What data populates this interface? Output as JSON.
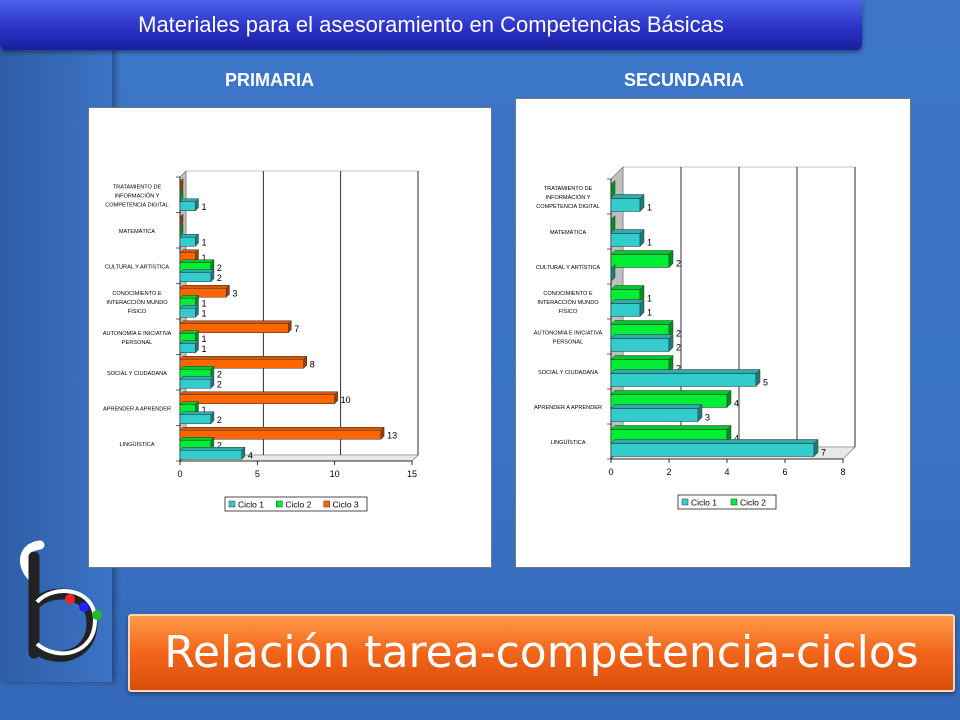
{
  "header": {
    "title": "Materiales para el asesoramiento en Competencias Básicas"
  },
  "footer": {
    "title": "Relación tarea-competencia-ciclos"
  },
  "sections": {
    "primaria": "PRIMARIA",
    "secundaria": "SECUNDARIA"
  },
  "chart_data": [
    {
      "type": "bar",
      "orientation": "horizontal",
      "title": "PRIMARIA",
      "categories": [
        "TRATAMIENTO DE INFORMACIÓN Y COMPETENCIA DIGITAL",
        "MATEMÁTICA",
        "CULTURAL Y ARTÍSTICA",
        "CONOCIMIENTO E INTERACCIÓN MUNDO FÍSICO",
        "AUTONOMÍA E INICIATIVA PERSONAL",
        "SOCIAL Y CIUDADANA",
        "APRENDER A APRENDER",
        "LINGÜÍSTICA"
      ],
      "category_display": [
        [
          "TRATAMIENTO DE",
          "INFORMACIÓN Y",
          "COMPETENCIA DIGITAL"
        ],
        [
          "MATEMÁTICA"
        ],
        [
          "CULTURAL Y ARTÍSTICA"
        ],
        [
          "CONOCIMIENTO E",
          "INTERACCIÓN MUNDO",
          "FÍSICO"
        ],
        [
          "AUTONOMÍA E INICIATIVA",
          "PERSONAL"
        ],
        [
          "SOCIAL Y CIUDADANA"
        ],
        [
          "APRENDER A APRENDER"
        ],
        [
          "LINGÜÍSTICA"
        ]
      ],
      "series": [
        {
          "name": "Ciclo 1",
          "color": "#33cccc",
          "values": [
            1,
            1,
            2,
            1,
            1,
            2,
            2,
            4
          ]
        },
        {
          "name": "Ciclo 2",
          "color": "#00ee33",
          "values": [
            0,
            0,
            2,
            1,
            1,
            2,
            1,
            2
          ]
        },
        {
          "name": "Ciclo 3",
          "color": "#ff6600",
          "values": [
            0,
            0,
            1,
            3,
            7,
            8,
            10,
            13
          ]
        }
      ],
      "xlim": [
        0,
        15
      ],
      "xticks": [
        0,
        5,
        10,
        15
      ],
      "grid": true,
      "legend": "bottom"
    },
    {
      "type": "bar",
      "orientation": "horizontal",
      "title": "SECUNDARIA",
      "categories": [
        "TRATAMIENTO DE INFORMACIÓN Y COMPETENCIA DIGITAL",
        "MATEMÁTICA",
        "CULTURAL Y ARTÍSTICA",
        "CONOCIMIENTO E INTERACCIÓN MUNDO FÍSICO",
        "AUTONOMÍA E INICIATIVA PERSONAL",
        "SOCIAL Y CIUDADANA",
        "APRENDER A APRENDER",
        "LINGÜÍSTICA"
      ],
      "category_display": [
        [
          "TRATAMIENTO DE",
          "INFORMACIÓN Y",
          "COMPETENCIA DIGITAL"
        ],
        [
          "MATEMÁTICA"
        ],
        [
          "CULTURAL Y ARTÍSTICA"
        ],
        [
          "CONOCIMIENTO E",
          "INTERACCIÓN MUNDO",
          "FÍSICO"
        ],
        [
          "AUTONOMÍA E INICIATIVA",
          "PERSONAL"
        ],
        [
          "SOCIAL Y CIUDADANA"
        ],
        [
          "APRENDER A APRENDER"
        ],
        [
          "LINGÜÍSTICA"
        ]
      ],
      "series": [
        {
          "name": "Ciclo 1",
          "color": "#33cccc",
          "values": [
            1,
            1,
            0,
            1,
            2,
            5,
            3,
            7
          ]
        },
        {
          "name": "Ciclo 2",
          "color": "#00ee33",
          "values": [
            0,
            0,
            2,
            1,
            2,
            2,
            4,
            4
          ]
        }
      ],
      "xlim": [
        0,
        8
      ],
      "xticks": [
        0,
        2,
        4,
        6,
        8
      ],
      "grid": true,
      "legend": "bottom"
    }
  ],
  "logo": {
    "icon": "letter-b-logo-icon",
    "dot_colors": [
      "#ff2222",
      "#2222ff",
      "#22bb22"
    ]
  }
}
